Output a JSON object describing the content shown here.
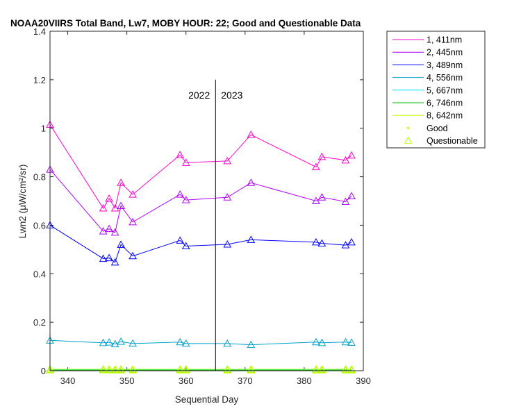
{
  "chart_data": {
    "type": "line",
    "title": "NOAA20VIIRS Total Band, Lw7, MOBY HOUR: 22;  Good and Questionable Data",
    "xlabel": "Sequential Day",
    "ylabel": "Lwn2 (μW/cm²/sr)",
    "xlim": [
      337,
      390
    ],
    "ylim": [
      0,
      1.4
    ],
    "xticks": [
      340,
      350,
      360,
      370,
      380,
      390
    ],
    "yticks": [
      0,
      0.2,
      0.4,
      0.6,
      0.8,
      1,
      1.2,
      1.4
    ],
    "ytick_labels": [
      "0",
      "0.2",
      "0.4",
      "0.6",
      "0.8",
      "1",
      "1.2",
      "1.4"
    ],
    "grid": false,
    "legend_position": "outside top-right",
    "annotations": [
      {
        "label": "2022",
        "x": 365,
        "side": "left"
      },
      {
        "label": "2023",
        "x": 365,
        "side": "right"
      }
    ],
    "divider_x": 365,
    "divider_top": 1.2,
    "x": [
      337,
      346,
      347,
      348,
      349,
      351,
      359,
      360,
      367,
      371,
      382,
      383,
      387,
      388
    ],
    "series": [
      {
        "name": "1, 411nm",
        "color": "#ff00cc",
        "values": [
          1.015,
          0.67,
          0.71,
          0.67,
          0.775,
          0.727,
          0.89,
          0.858,
          0.865,
          0.973,
          0.84,
          0.882,
          0.868,
          0.888
        ]
      },
      {
        "name": "2, 445nm",
        "color": "#b000ff",
        "values": [
          0.83,
          0.575,
          0.585,
          0.57,
          0.68,
          0.613,
          0.727,
          0.704,
          0.715,
          0.775,
          0.7,
          0.715,
          0.697,
          0.72
        ]
      },
      {
        "name": "3, 489nm",
        "color": "#0000ff",
        "values": [
          0.6,
          0.462,
          0.465,
          0.447,
          0.52,
          0.473,
          0.537,
          0.514,
          0.521,
          0.54,
          0.53,
          0.525,
          0.518,
          0.53
        ]
      },
      {
        "name": "4, 556nm",
        "color": "#00a0c8",
        "values": [
          0.125,
          0.115,
          0.117,
          0.11,
          0.12,
          0.112,
          0.118,
          0.112,
          0.112,
          0.107,
          0.118,
          0.115,
          0.118,
          0.116
        ]
      },
      {
        "name": "5, 667nm",
        "color": "#00e0ff",
        "values": [
          0.004,
          0.004,
          0.004,
          0.004,
          0.004,
          0.004,
          0.004,
          0.004,
          0.004,
          0.004,
          0.004,
          0.004,
          0.004,
          0.004
        ]
      },
      {
        "name": "6, 746nm",
        "color": "#00bb00",
        "values": [
          0.002,
          0.002,
          0.002,
          0.002,
          0.002,
          0.002,
          0.002,
          0.002,
          0.002,
          0.002,
          0.002,
          0.002,
          0.002,
          0.002
        ]
      },
      {
        "name": "8, 642nm",
        "color": "#b8ff00",
        "values": [
          0.006,
          0.006,
          0.006,
          0.006,
          0.006,
          0.006,
          0.006,
          0.006,
          0.006,
          0.006,
          0.006,
          0.006,
          0.006,
          0.006
        ]
      }
    ],
    "marker_legend": [
      {
        "label": "Good",
        "marker": "star",
        "color": "#b8ff00"
      },
      {
        "label": "Questionable",
        "marker": "triangle",
        "color": "#b8ff00"
      }
    ]
  }
}
